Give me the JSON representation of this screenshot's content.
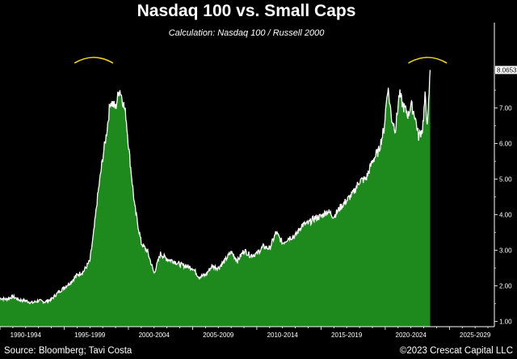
{
  "title": "Nasdaq 100 vs. Small Caps",
  "subtitle": "Calculation: Nasdaq 100 / Russell 2000",
  "source": "Source: Bloomberg; Tavi Costa",
  "copyright": "©2023 Crescat Capital LLC",
  "colors": {
    "background": "#000000",
    "area_fill": "#1e8a1e",
    "line": "#ffffff",
    "arc": "#e8d21a",
    "axis": "#ffffff"
  },
  "chart_data": {
    "type": "area",
    "title": "Nasdaq 100 vs. Small Caps",
    "subtitle": "Calculation: Nasdaq 100 / Russell 2000",
    "xlabel": "",
    "ylabel": "",
    "xlim": [
      1990.0,
      2028.5
    ],
    "ylim": [
      0.85,
      8.85
    ],
    "grid": false,
    "x_ticks": [
      1992,
      1997,
      2002,
      2007,
      2012,
      2017,
      2022,
      2027
    ],
    "x_tick_labels": [
      "1990-1994",
      "1995-1999",
      "2000-2004",
      "2005-2009",
      "2010-2014",
      "2015-2019",
      "2020-2024",
      "2025-2029"
    ],
    "y_ticks": [
      1.0,
      2.0,
      3.0,
      4.0,
      5.0,
      6.0,
      7.0
    ],
    "y_tick_labels": [
      "1.00",
      "2.00",
      "3.00",
      "4.00",
      "5.00",
      "6.00",
      "7.00"
    ],
    "last_value_label": "8.0653",
    "last_value": 8.0653,
    "annotations": [
      {
        "type": "arc",
        "x_center": 1997.3,
        "width_years": 3.0,
        "y": 8.35
      },
      {
        "type": "arc",
        "x_center": 2023.3,
        "width_years": 3.0,
        "y": 8.35
      }
    ],
    "x": [
      1990.0,
      1990.5,
      1991.0,
      1991.5,
      1992.0,
      1992.5,
      1993.0,
      1993.5,
      1994.0,
      1994.5,
      1995.0,
      1995.5,
      1996.0,
      1996.5,
      1997.0,
      1997.3,
      1997.6,
      1998.0,
      1998.3,
      1998.6,
      1999.0,
      1999.3,
      1999.5,
      1999.8,
      2000.1,
      2000.5,
      2001.0,
      2001.5,
      2002.0,
      2002.5,
      2003.0,
      2003.5,
      2004.0,
      2004.5,
      2005.0,
      2005.5,
      2006.0,
      2006.5,
      2007.0,
      2007.5,
      2008.0,
      2008.5,
      2009.0,
      2009.5,
      2010.0,
      2010.5,
      2011.0,
      2011.5,
      2012.0,
      2012.5,
      2013.0,
      2013.5,
      2014.0,
      2014.5,
      2015.0,
      2015.5,
      2016.0,
      2016.5,
      2017.0,
      2017.5,
      2018.0,
      2018.5,
      2019.0,
      2019.5,
      2019.9,
      2020.2,
      2020.5,
      2020.8,
      2021.1,
      2021.4,
      2021.8,
      2022.0,
      2022.3,
      2022.6,
      2022.9,
      2023.1,
      2023.3,
      2023.5
    ],
    "values": [
      1.65,
      1.62,
      1.7,
      1.6,
      1.58,
      1.52,
      1.58,
      1.55,
      1.62,
      1.8,
      1.95,
      2.1,
      2.3,
      2.4,
      2.7,
      3.5,
      4.5,
      5.6,
      6.3,
      7.2,
      7.0,
      7.55,
      7.3,
      6.8,
      5.6,
      4.2,
      3.2,
      2.95,
      2.35,
      2.9,
      2.75,
      2.7,
      2.6,
      2.55,
      2.5,
      2.25,
      2.3,
      2.55,
      2.5,
      2.7,
      2.95,
      2.7,
      3.0,
      2.85,
      2.9,
      3.1,
      3.05,
      3.5,
      3.2,
      3.35,
      3.4,
      3.7,
      3.75,
      3.9,
      3.95,
      4.1,
      3.95,
      4.2,
      4.4,
      4.6,
      4.95,
      5.0,
      5.5,
      5.8,
      6.4,
      7.6,
      6.7,
      6.4,
      7.4,
      7.05,
      6.8,
      7.1,
      6.8,
      6.2,
      6.4,
      7.3,
      6.5,
      8.0653
    ]
  }
}
